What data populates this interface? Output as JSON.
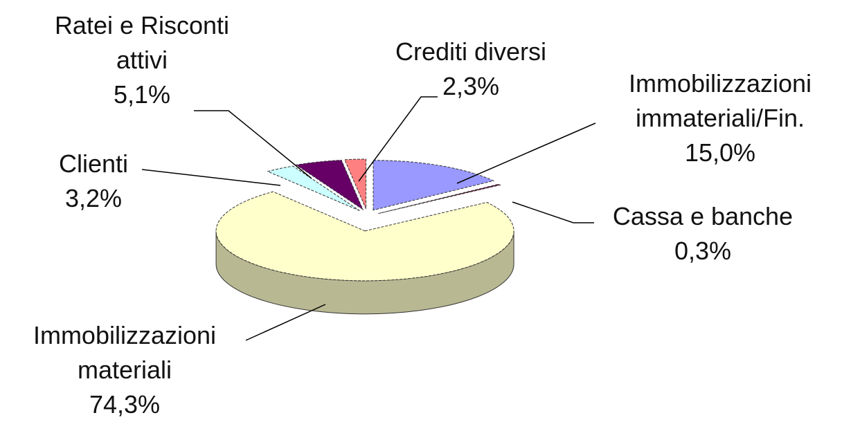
{
  "chart_data": {
    "type": "pie",
    "categories": [
      "Immobilizzazioni immateriali/Fin.",
      "Cassa e banche",
      "Immobilizzazioni materiali",
      "Clienti",
      "Ratei e Risconti attivi",
      "Crediti diversi"
    ],
    "values": [
      15.0,
      0.3,
      74.3,
      3.2,
      5.1,
      2.3
    ],
    "value_labels": [
      "15,0%",
      "0,3%",
      "74,3%",
      "3,2%",
      "5,1%",
      "2,3%"
    ],
    "colors": [
      "#9999ff",
      "#660033",
      "#ffffcc",
      "#ccffff",
      "#660066",
      "#ff8080"
    ]
  }
}
